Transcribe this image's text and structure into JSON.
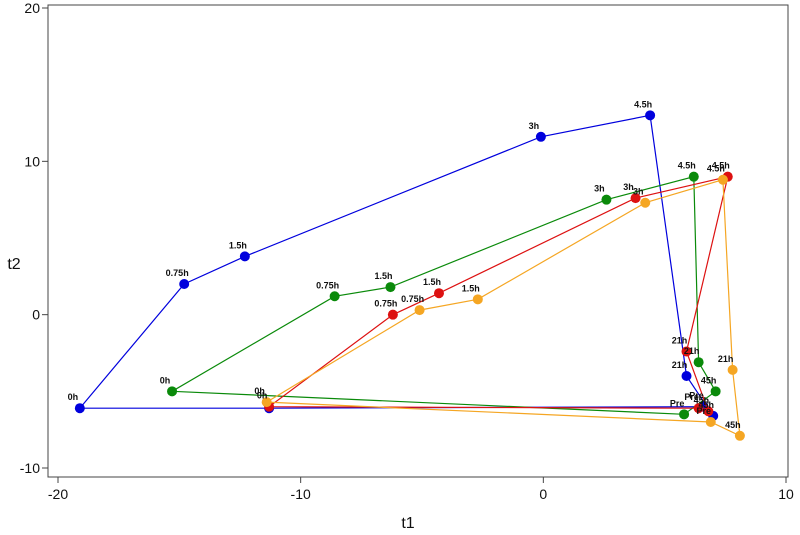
{
  "chart_data": {
    "type": "scatter",
    "xlabel": "t1",
    "ylabel": "t2",
    "xlim": [
      -20,
      10
    ],
    "ylim": [
      -10,
      20
    ],
    "xticks": [
      -20,
      -10,
      0,
      10
    ],
    "yticks": [
      -10,
      0,
      10,
      20
    ],
    "grid": false,
    "legend": "none",
    "series": [
      {
        "color": "#0000dd",
        "points": [
          {
            "label": "0h",
            "x": -19.1,
            "y": -6.1
          },
          {
            "label": "0.75h",
            "x": -14.8,
            "y": 2.0
          },
          {
            "label": "1.5h",
            "x": -12.3,
            "y": 3.8
          },
          {
            "label": "3h",
            "x": -0.1,
            "y": 11.6
          },
          {
            "label": "4.5h",
            "x": 4.4,
            "y": 13.0
          },
          {
            "label": "21h",
            "x": 5.9,
            "y": -4.0
          },
          {
            "label": "45h",
            "x": 7.0,
            "y": -6.6
          },
          {
            "label": "Pre",
            "x": 6.6,
            "y": -6.0
          },
          {
            "label": "",
            "x": -11.3,
            "y": -6.1
          }
        ]
      },
      {
        "color": "#0a8a0a",
        "points": [
          {
            "label": "0h",
            "x": -15.3,
            "y": -5.0
          },
          {
            "label": "0.75h",
            "x": -8.6,
            "y": 1.2
          },
          {
            "label": "1.5h",
            "x": -6.3,
            "y": 1.8
          },
          {
            "label": "3h",
            "x": 2.6,
            "y": 7.5
          },
          {
            "label": "4.5h",
            "x": 6.2,
            "y": 9.0
          },
          {
            "label": "21h",
            "x": 6.4,
            "y": -3.1
          },
          {
            "label": "45h",
            "x": 7.1,
            "y": -5.0
          },
          {
            "label": "Pre",
            "x": 5.8,
            "y": -6.5
          }
        ]
      },
      {
        "color": "#dd1111",
        "points": [
          {
            "label": "0h",
            "x": -11.3,
            "y": -6.0
          },
          {
            "label": "0.75h",
            "x": -6.2,
            "y": 0.0
          },
          {
            "label": "1.5h",
            "x": -4.3,
            "y": 1.4
          },
          {
            "label": "3h",
            "x": 3.8,
            "y": 7.6
          },
          {
            "label": "4.5h",
            "x": 7.6,
            "y": 9.0
          },
          {
            "label": "21h",
            "x": 5.9,
            "y": -2.4
          },
          {
            "label": "45h",
            "x": 6.8,
            "y": -6.3
          },
          {
            "label": "Pre",
            "x": 6.4,
            "y": -6.1
          }
        ]
      },
      {
        "color": "#f5a623",
        "points": [
          {
            "label": "0h",
            "x": -11.4,
            "y": -5.7
          },
          {
            "label": "0.75h",
            "x": -5.1,
            "y": 0.3
          },
          {
            "label": "1.5h",
            "x": -2.7,
            "y": 1.0
          },
          {
            "label": "3h",
            "x": 4.2,
            "y": 7.3
          },
          {
            "label": "4.5h",
            "x": 7.4,
            "y": 8.8
          },
          {
            "label": "21h",
            "x": 7.8,
            "y": -3.6
          },
          {
            "label": "45h",
            "x": 8.1,
            "y": -7.9
          },
          {
            "label": "Pre",
            "x": 6.9,
            "y": -7.0
          }
        ]
      }
    ]
  }
}
